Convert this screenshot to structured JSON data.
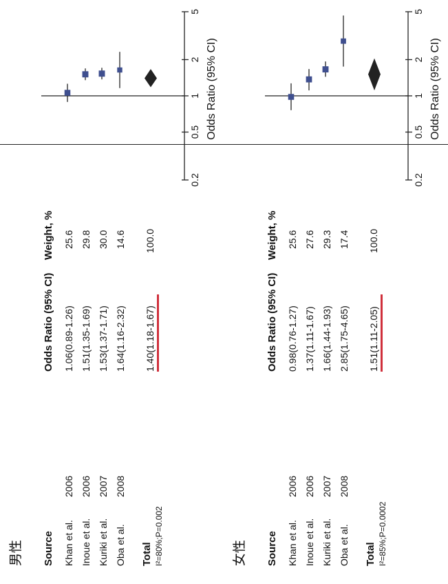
{
  "chart_data": [
    {
      "type": "forest",
      "group_label": "男性",
      "header": {
        "source": "Source",
        "or_ci": "Odds Ratio (95% CI)",
        "weight": "Weight, %"
      },
      "studies": [
        {
          "source": "Khan et al.",
          "year": "2006",
          "or_text": "1.06(0.89-1.26)",
          "weight": "25.6",
          "or": 1.06,
          "lo": 0.89,
          "hi": 1.26
        },
        {
          "source": "Inoue et al.",
          "year": "2006",
          "or_text": "1.51(1.35-1.69)",
          "weight": "29.8",
          "or": 1.51,
          "lo": 1.35,
          "hi": 1.69
        },
        {
          "source": "Kuriki et al.",
          "year": "2007",
          "or_text": "1.53(1.37-1.71)",
          "weight": "30.0",
          "or": 1.53,
          "lo": 1.37,
          "hi": 1.71
        },
        {
          "source": "Oba et al.",
          "year": "2008",
          "or_text": "1.64(1.16-2.32)",
          "weight": "14.6",
          "or": 1.64,
          "lo": 1.16,
          "hi": 2.32
        }
      ],
      "total": {
        "label": "Total",
        "or_text": "1.40(1.18-1.67)",
        "weight": "100.0",
        "or": 1.4,
        "lo": 1.18,
        "hi": 1.67
      },
      "heterogeneity": "I²=80%;P=0.002",
      "xaxis": {
        "label": "Odds Ratio (95% CI)",
        "scale": "log",
        "ticks": [
          0.2,
          0.5,
          1,
          2,
          5
        ],
        "tick_labels": [
          "0.2",
          "0.5",
          "1",
          "2",
          "5"
        ],
        "range": [
          0.2,
          5
        ]
      }
    },
    {
      "type": "forest",
      "group_label": "女性",
      "header": {
        "source": "Source",
        "or_ci": "Odds Ratio (95% CI)",
        "weight": "Weight, %"
      },
      "studies": [
        {
          "source": "Khan et al.",
          "year": "2006",
          "or_text": "0.98(0.76-1.27)",
          "weight": "25.6",
          "or": 0.98,
          "lo": 0.76,
          "hi": 1.27
        },
        {
          "source": "Inoue et al.",
          "year": "2006",
          "or_text": "1.37(1.11-1.67)",
          "weight": "27.6",
          "or": 1.37,
          "lo": 1.11,
          "hi": 1.67
        },
        {
          "source": "Kuriki et al.",
          "year": "2007",
          "or_text": "1.66(1.44-1.93)",
          "weight": "29.3",
          "or": 1.66,
          "lo": 1.44,
          "hi": 1.93
        },
        {
          "source": "Oba et al.",
          "year": "2008",
          "or_text": "2.85(1.75-4.65)",
          "weight": "17.4",
          "or": 2.85,
          "lo": 1.75,
          "hi": 4.65
        }
      ],
      "total": {
        "label": "Total",
        "or_text": "1.51(1.11-2.05)",
        "weight": "100.0",
        "or": 1.51,
        "lo": 1.11,
        "hi": 2.05
      },
      "heterogeneity": "I²=85%;P=0.0002",
      "xaxis": {
        "label": "Odds Ratio (95% CI)",
        "scale": "log",
        "ticks": [
          0.2,
          0.5,
          1,
          2,
          5
        ],
        "tick_labels": [
          "0.2",
          "0.5",
          "1",
          "2",
          "5"
        ],
        "range": [
          0.2,
          5
        ]
      }
    }
  ],
  "colors": {
    "marker": "#3f4f8f",
    "diamond": "#222222",
    "underline": "#d0303c",
    "lines": "#222222"
  }
}
